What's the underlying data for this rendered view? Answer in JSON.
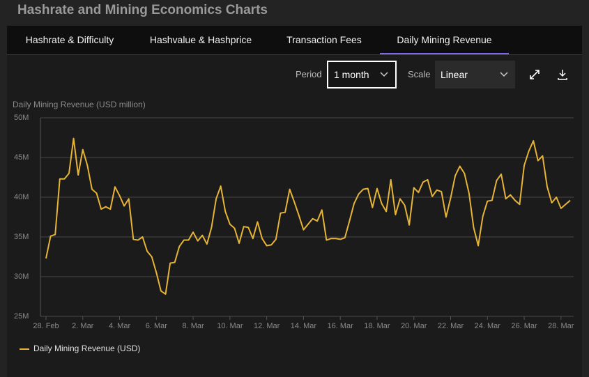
{
  "header": {
    "title": "Hashrate and Mining Economics Charts"
  },
  "tabs": [
    "Hashrate & Difficulty",
    "Hashvalue & Hashprice",
    "Transaction Fees",
    "Daily Mining Revenue"
  ],
  "controls": {
    "period_label": "Period",
    "period_value": "1 month",
    "scale_label": "Scale",
    "scale_value": "Linear"
  },
  "chart_data": {
    "type": "line",
    "y_label": "Daily Mining Revenue (USD million)",
    "categories": [
      "28. Feb",
      null,
      null,
      null,
      null,
      null,
      null,
      null,
      "2. Mar",
      null,
      null,
      null,
      null,
      null,
      null,
      null,
      "4. Mar",
      null,
      null,
      null,
      null,
      null,
      null,
      null,
      "6. Mar",
      null,
      null,
      null,
      null,
      null,
      null,
      null,
      "8. Mar",
      null,
      null,
      null,
      null,
      null,
      null,
      null,
      "10. Mar",
      null,
      null,
      null,
      null,
      null,
      null,
      null,
      "12. Mar",
      null,
      null,
      null,
      null,
      null,
      null,
      null,
      "14. Mar",
      null,
      null,
      null,
      null,
      null,
      null,
      null,
      "16. Mar",
      null,
      null,
      null,
      null,
      null,
      null,
      null,
      "18. Mar",
      null,
      null,
      null,
      null,
      null,
      null,
      null,
      "20. Mar",
      null,
      null,
      null,
      null,
      null,
      null,
      null,
      "22. Mar",
      null,
      null,
      null,
      null,
      null,
      null,
      null,
      "24. Mar",
      null,
      null,
      null,
      null,
      null,
      null,
      null,
      "26. Mar",
      null,
      null,
      null,
      null,
      null,
      null,
      null,
      "28. Mar",
      null,
      null
    ],
    "series": [
      {
        "name": "Daily Mining Revenue (USD)",
        "color": "#e6b436",
        "values": [
          32.3,
          35.1,
          35.3,
          42.3,
          42.3,
          43,
          47.4,
          42.8,
          46,
          44,
          41,
          40.5,
          38.5,
          38.8,
          38.5,
          41.3,
          40.2,
          38.9,
          39.8,
          34.7,
          34.6,
          35,
          33.2,
          32.5,
          30.5,
          28.2,
          27.8,
          31.7,
          31.8,
          33.8,
          34.6,
          34.6,
          35.6,
          34.5,
          35.2,
          34.1,
          36.2,
          39.8,
          41.4,
          38.2,
          36.6,
          36.1,
          34.2,
          36.3,
          36.2,
          34.8,
          36.9,
          34.8,
          33.9,
          34,
          34.7,
          38,
          38.1,
          41,
          39.4,
          37.7,
          35.9,
          36.6,
          37.3,
          37,
          38.4,
          34.6,
          34.8,
          34.8,
          34.7,
          34.9,
          37,
          39.2,
          40.4,
          41,
          41.1,
          38.7,
          41.1,
          39.2,
          38.2,
          42.2,
          37.8,
          39.8,
          39,
          36.5,
          41.2,
          40.6,
          41.9,
          42.2,
          40.1,
          40.9,
          40.7,
          37.5,
          39.9,
          42.7,
          43.9,
          43,
          40.5,
          36.2,
          33.9,
          37.6,
          39.5,
          39.6,
          42.1,
          42.9,
          39.8,
          40.3,
          39.6,
          39.1,
          44,
          45.8,
          47.1,
          44.6,
          45.2,
          41.3,
          39.3,
          40,
          38.6,
          39.1,
          39.6
        ]
      }
    ],
    "ylim": [
      25,
      50
    ],
    "yticks": [
      {
        "value": 25,
        "label": "25M"
      },
      {
        "value": 30,
        "label": "30M"
      },
      {
        "value": 35,
        "label": "35M"
      },
      {
        "value": 40,
        "label": "40M"
      },
      {
        "value": 45,
        "label": "45M"
      },
      {
        "value": 50,
        "label": "50M"
      }
    ],
    "grid": true
  }
}
